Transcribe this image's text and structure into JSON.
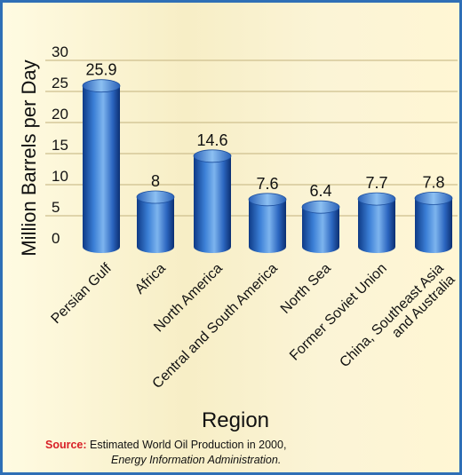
{
  "chart_data": {
    "type": "bar",
    "title": "",
    "xlabel": "Region",
    "ylabel": "Million Barrels per Day",
    "ylim": [
      0,
      30
    ],
    "yticks": [
      "30",
      "25",
      "20",
      "15",
      "10",
      "5",
      "0"
    ],
    "categories": [
      "Persian Gulf",
      "Africa",
      "North America",
      "Central and South America",
      "North Sea",
      "Former Soviet Union",
      "China, Southeast Asia and Australia"
    ],
    "category_lines": [
      [
        "Persian Gulf"
      ],
      [
        "Africa"
      ],
      [
        "North America"
      ],
      [
        "Central and South America"
      ],
      [
        "North Sea"
      ],
      [
        "Former Soviet Union"
      ],
      [
        "China, Southeast Asia",
        "and Australia"
      ]
    ],
    "values": [
      25.9,
      8,
      14.6,
      7.6,
      6.4,
      7.7,
      7.8
    ],
    "value_labels": [
      "25.9",
      "8",
      "14.6",
      "7.6",
      "6.4",
      "7.7",
      "7.8"
    ],
    "bar_color": "#2f6fc0",
    "grid": true,
    "legend": "none"
  },
  "source": {
    "label": "Source:",
    "line1": "Estimated World Oil Production in 2000,",
    "line2": "Energy Information Administration."
  }
}
